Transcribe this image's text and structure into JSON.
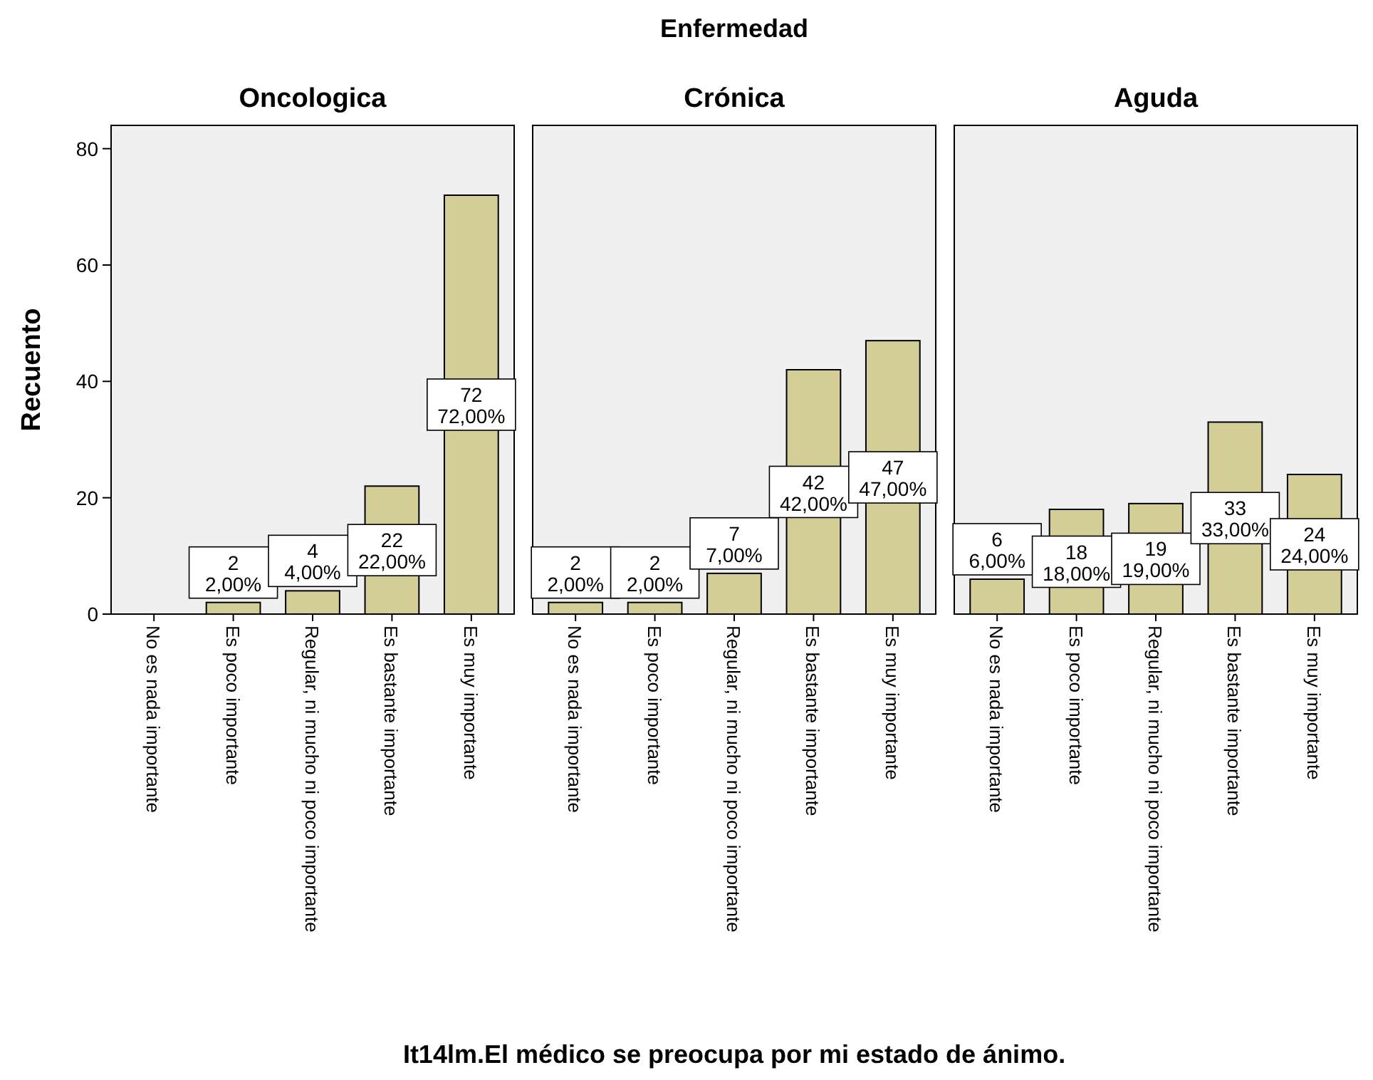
{
  "chart_data": [
    {
      "type": "bar",
      "title": "Oncologica",
      "ylabel": "Recuento",
      "categories": [
        "No es nada importante",
        "Es poco importante",
        "Regular, ni mucho ni poco importante",
        "Es bastante importante",
        "Es muy importante"
      ],
      "values": [
        0,
        2,
        4,
        22,
        72
      ],
      "value_labels": [
        null,
        "2\n2,00%",
        "4\n4,00%",
        "22\n22,00%",
        "72\n72,00%"
      ],
      "color": "#d3ce96",
      "ylim": [
        0,
        84
      ],
      "yticks": [
        0,
        20,
        40,
        60,
        80
      ],
      "grid": false
    },
    {
      "type": "bar",
      "title": "Crónica",
      "annotations": [
        "Enfermedad"
      ],
      "xlabel": "It14lm.El médico se preocupa por mi estado de ánimo.",
      "categories": [
        "No es nada importante",
        "Es poco importante",
        "Regular, ni mucho ni poco importante",
        "Es bastante importante",
        "Es muy importante"
      ],
      "values": [
        2,
        2,
        7,
        42,
        47
      ],
      "value_labels": [
        "2\n2,00%",
        "2\n2,00%",
        "7\n7,00%",
        "42\n42,00%",
        "47\n47,00%"
      ],
      "color": "#d3ce96",
      "ylim": [
        0,
        84
      ],
      "yticks": [
        0,
        20,
        40,
        60,
        80
      ],
      "grid": false,
      "tick_labels": "x"
    },
    {
      "type": "bar",
      "title": "Aguda",
      "categories": [
        "No es nada importante",
        "Es poco importante",
        "Regular, ni mucho ni poco importante",
        "Es bastante importante",
        "Es muy importante"
      ],
      "values": [
        6,
        18,
        19,
        33,
        24
      ],
      "value_labels": [
        "6\n6,00%",
        "18\n18,00%",
        "19\n19,00%",
        "33\n33,00%",
        "24\n24,00%"
      ],
      "color": "#d3ce96",
      "ylim": [
        0,
        84
      ],
      "yticks": [
        0,
        20,
        40,
        60,
        80
      ],
      "grid": false,
      "tick_labels": "x"
    }
  ]
}
